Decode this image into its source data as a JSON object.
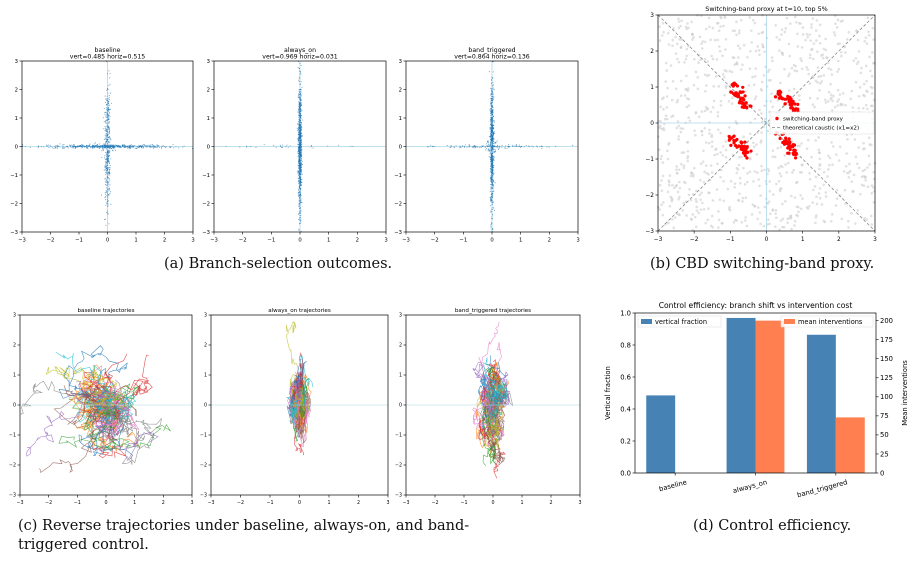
{
  "captions": {
    "a": "(a) Branch-selection outcomes.",
    "b": "(b) CBD switching-band proxy.",
    "c": "(c) Reverse trajectories under baseline, always-on, and band-triggered control.",
    "d": "(d) Control efficiency."
  },
  "colors": {
    "scatter": "#1f77b4",
    "axis_line": "#add8e6",
    "band_proxy": "#ff0000",
    "background_points": "#c8c8c8",
    "bar_vertical": "#4682b4",
    "bar_interventions": "#ff7f50"
  },
  "chart_data": [
    {
      "id": "a1",
      "type": "scatter",
      "title_line1": "baseline",
      "title_line2": "vert=0.485 horiz=0.515",
      "xlim": [
        -3,
        3
      ],
      "ylim": [
        -3,
        3
      ],
      "xticks": [
        "-3",
        "-2",
        "-1",
        "0",
        "1",
        "2",
        "3"
      ],
      "yticks": [
        "3",
        "2",
        "1",
        "0",
        "-1",
        "-2",
        "-3"
      ],
      "vertical_fraction": 0.485,
      "horizontal_fraction": 0.515
    },
    {
      "id": "a2",
      "type": "scatter",
      "title_line1": "always_on",
      "title_line2": "vert=0.969 horiz=0.031",
      "xlim": [
        -3,
        3
      ],
      "ylim": [
        -3,
        3
      ],
      "xticks": [
        "-3",
        "-2",
        "-1",
        "0",
        "1",
        "2",
        "3"
      ],
      "yticks": [
        "3",
        "2",
        "1",
        "0",
        "-1",
        "-2",
        "-3"
      ],
      "vertical_fraction": 0.969,
      "horizontal_fraction": 0.031
    },
    {
      "id": "a3",
      "type": "scatter",
      "title_line1": "band_triggered",
      "title_line2": "vert=0.864 horiz=0.136",
      "xlim": [
        -3,
        3
      ],
      "ylim": [
        -3,
        3
      ],
      "xticks": [
        "-3",
        "-2",
        "-1",
        "0",
        "1",
        "2",
        "3"
      ],
      "yticks": [
        "3",
        "2",
        "1",
        "0",
        "-1",
        "-2",
        "-3"
      ],
      "vertical_fraction": 0.864,
      "horizontal_fraction": 0.136
    },
    {
      "id": "b",
      "type": "scatter",
      "title": "Switching-band proxy at t=10, top 5%",
      "xlim": [
        -3,
        3
      ],
      "ylim": [
        -3,
        3
      ],
      "xticks": [
        "-3",
        "-2",
        "-1",
        "0",
        "1",
        "2",
        "3"
      ],
      "yticks": [
        "3",
        "2",
        "1",
        "0",
        "-1",
        "-2",
        "-3"
      ],
      "legend": [
        "switching-band proxy",
        "theoretical caustic (x1=x2)"
      ]
    },
    {
      "id": "c1",
      "type": "line",
      "title": "baseline trajectories",
      "xlim": [
        -3,
        3
      ],
      "ylim": [
        -3,
        3
      ],
      "xticks": [
        "-3",
        "-2",
        "-1",
        "0",
        "1",
        "2",
        "3"
      ],
      "yticks": [
        "3",
        "2",
        "1",
        "0",
        "-1",
        "-2",
        "-3"
      ]
    },
    {
      "id": "c2",
      "type": "line",
      "title": "always_on trajectories",
      "xlim": [
        -3,
        3
      ],
      "ylim": [
        -3,
        3
      ],
      "xticks": [
        "-3",
        "-2",
        "-1",
        "0",
        "1",
        "2",
        "3"
      ],
      "yticks": [
        "3",
        "2",
        "1",
        "0",
        "-1",
        "-2",
        "-3"
      ]
    },
    {
      "id": "c3",
      "type": "line",
      "title": "band_triggered trajectories",
      "xlim": [
        -3,
        3
      ],
      "ylim": [
        -3,
        3
      ],
      "xticks": [
        "-3",
        "-2",
        "-1",
        "0",
        "1",
        "2",
        "3"
      ],
      "yticks": [
        "3",
        "2",
        "1",
        "0",
        "-1",
        "-2",
        "-3"
      ]
    },
    {
      "id": "d",
      "type": "bar",
      "title": "Control efficiency: branch shift vs intervention cost",
      "categories": [
        "baseline",
        "always_on",
        "band_triggered"
      ],
      "series": [
        {
          "name": "vertical fraction",
          "values": [
            0.485,
            0.969,
            0.864
          ],
          "axis": "left"
        },
        {
          "name": "mean interventions",
          "values": [
            0,
            200,
            73
          ],
          "axis": "right"
        }
      ],
      "ylabel": "Vertical fraction",
      "ylim": [
        0,
        1.0
      ],
      "y2label": "Mean interventions",
      "y2lim": [
        0,
        210
      ],
      "yticks": [
        "0.0",
        "0.2",
        "0.4",
        "0.6",
        "0.8",
        "1.0"
      ],
      "y2ticks": [
        "0",
        "25",
        "50",
        "75",
        "100",
        "125",
        "150",
        "175",
        "200"
      ],
      "legend_placement": "top"
    }
  ]
}
